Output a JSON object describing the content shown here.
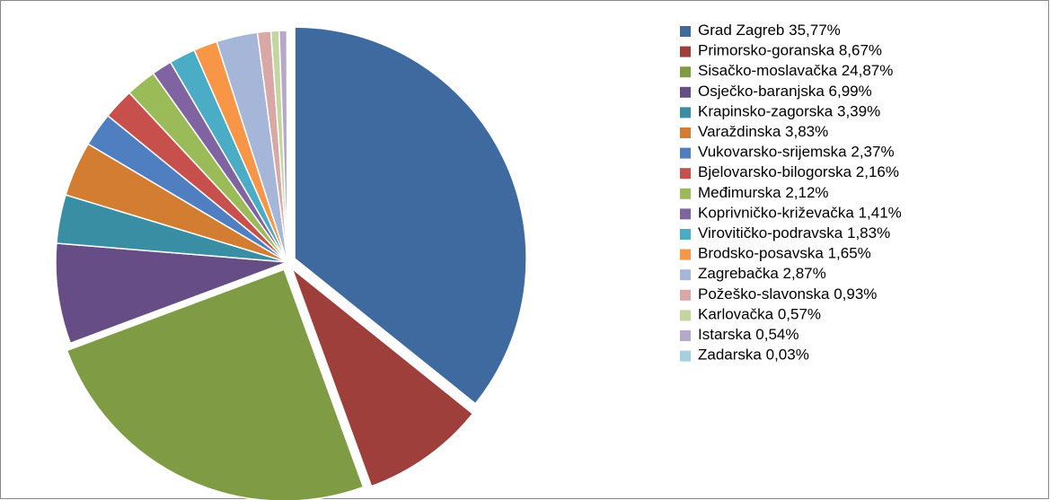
{
  "chart_data": {
    "type": "pie",
    "categories": [
      "Grad Zagreb",
      "Primorsko-goranska",
      "Sisačko-moslavačka",
      "Osječko-baranjska",
      "Krapinsko-zagorska",
      "Varaždinska",
      "Vukovarsko-srijemska",
      "Bjelovarsko-bilogorska",
      "Međimurska",
      "Koprivničko-križevačka",
      "Virovitičko-podravska",
      "Brodsko-posavska",
      "Zagrebačka",
      "Požeško-slavonska",
      "Karlovačka",
      "Istarska",
      "Zadarska"
    ],
    "values": [
      35.77,
      8.67,
      24.87,
      6.99,
      3.39,
      3.83,
      2.37,
      2.16,
      2.12,
      1.41,
      1.83,
      1.65,
      2.87,
      0.93,
      0.57,
      0.54,
      0.03
    ],
    "value_labels": [
      "35,77%",
      "8,67%",
      "24,87%",
      "6,99%",
      "3,39%",
      "3,83%",
      "2,37%",
      "2,16%",
      "2,12%",
      "1,41%",
      "1,83%",
      "1,65%",
      "2,87%",
      "0,93%",
      "0,57%",
      "0,54%",
      "0,03%"
    ],
    "colors": [
      "#3f6a9f",
      "#9e3f3c",
      "#7f9c45",
      "#664d85",
      "#3a8ea4",
      "#d37d32",
      "#4f7fc0",
      "#c8504c",
      "#9bbb59",
      "#8064a2",
      "#4bacc6",
      "#f79646",
      "#a5b6d8",
      "#d9a8a6",
      "#c4d6a0",
      "#b5a8c8",
      "#a5d0df"
    ],
    "legend": "right"
  }
}
